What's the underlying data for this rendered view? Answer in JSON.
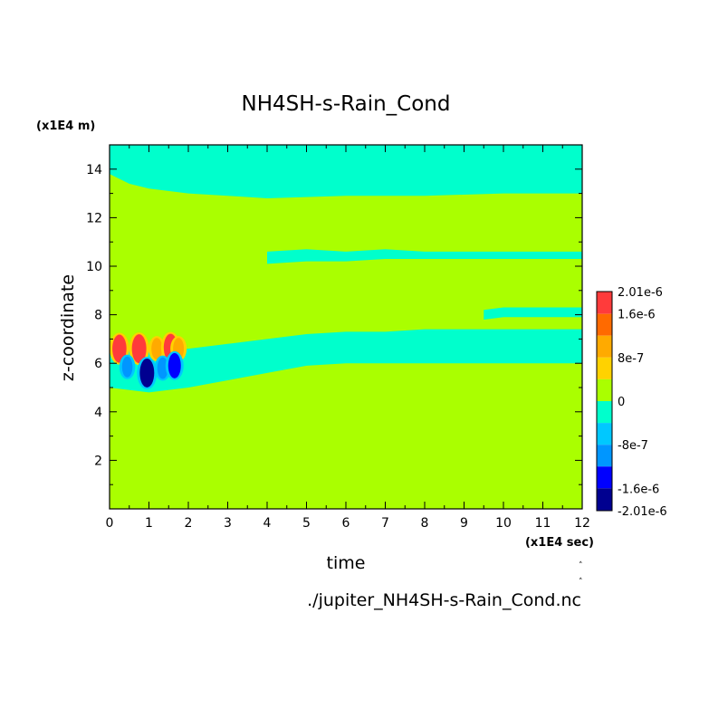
{
  "chart_data": {
    "type": "heatmap",
    "subtype": "filled-contour",
    "title": "NH4SH-s-Rain_Cond",
    "xlabel": "time",
    "ylabel": "z-coordinate",
    "x_unit": "(x1E4 sec)",
    "y_unit": "(x1E4 m)",
    "xlim": [
      0,
      12
    ],
    "ylim": [
      0,
      15
    ],
    "x_ticks": [
      "0",
      "1",
      "2",
      "3",
      "4",
      "5",
      "6",
      "7",
      "8",
      "9",
      "10",
      "11",
      "12"
    ],
    "y_ticks": [
      "2",
      "4",
      "6",
      "8",
      "10",
      "12",
      "14"
    ],
    "x_tick_values": [
      0,
      1,
      2,
      3,
      4,
      5,
      6,
      7,
      8,
      9,
      10,
      11,
      12
    ],
    "y_tick_values": [
      2,
      4,
      6,
      8,
      10,
      12,
      14
    ],
    "grid": false,
    "background_level": "0",
    "colorbar": {
      "labels": [
        "2.01e-6",
        "1.6e-6",
        "8e-7",
        "0",
        "-8e-7",
        "-1.6e-6",
        "-2.01e-6"
      ],
      "label_values": [
        2.01e-06,
        1.6e-06,
        8e-07,
        0,
        -8e-07,
        -1.6e-06,
        -2.01e-06
      ],
      "levels": [
        {
          "from": 1.6e-06,
          "to": 2.01e-06,
          "color": "#ff3b3b"
        },
        {
          "from": 1.2e-06,
          "to": 1.6e-06,
          "color": "#ff6a00"
        },
        {
          "from": 8e-07,
          "to": 1.2e-06,
          "color": "#ffaa00"
        },
        {
          "from": 4e-07,
          "to": 8e-07,
          "color": "#ffd200"
        },
        {
          "from": 0,
          "to": 4e-07,
          "color": "#aaff00"
        },
        {
          "from": -4e-07,
          "to": 0,
          "color": "#00ffcc"
        },
        {
          "from": -8e-07,
          "to": -4e-07,
          "color": "#00c8ff"
        },
        {
          "from": -1.2e-06,
          "to": -8e-07,
          "color": "#0096ff"
        },
        {
          "from": -1.6e-06,
          "to": -1.2e-06,
          "color": "#0000ff"
        },
        {
          "from": -2.01e-06,
          "to": -1.6e-06,
          "color": "#000090"
        }
      ]
    },
    "features": [
      {
        "name": "upper negative band",
        "color": "#00ffcc",
        "x": [
          0,
          0.5,
          1,
          2,
          3,
          4,
          6,
          8,
          10,
          12
        ],
        "z_bottom": [
          13.8,
          13.4,
          13.2,
          13.0,
          12.9,
          12.8,
          12.9,
          12.9,
          13.0,
          13.0
        ],
        "z_top": [
          15,
          15,
          15,
          15,
          15,
          15,
          15,
          15,
          15,
          15
        ]
      },
      {
        "name": "mid negative band",
        "color": "#00ffcc",
        "x": [
          4,
          5,
          6,
          7,
          8,
          9,
          10,
          11,
          12
        ],
        "z_bottom": [
          10.1,
          10.2,
          10.2,
          10.3,
          10.3,
          10.3,
          10.3,
          10.3,
          10.3
        ],
        "z_top": [
          10.6,
          10.7,
          10.6,
          10.7,
          10.6,
          10.6,
          10.6,
          10.6,
          10.6
        ]
      },
      {
        "name": "upper small negative band",
        "color": "#00ffcc",
        "x": [
          9.5,
          10,
          11,
          12
        ],
        "z_bottom": [
          7.8,
          7.9,
          7.9,
          7.9
        ],
        "z_top": [
          8.2,
          8.3,
          8.3,
          8.3
        ]
      },
      {
        "name": "lower negative band",
        "color": "#00ffcc",
        "x": [
          0,
          1,
          2,
          3,
          4,
          5,
          6,
          7,
          8,
          9,
          10,
          11,
          12
        ],
        "z_bottom": [
          5.0,
          4.8,
          5.0,
          5.3,
          5.6,
          5.9,
          6.0,
          6.0,
          6.0,
          6.0,
          6.0,
          6.0,
          6.0
        ],
        "z_top": [
          6.5,
          6.5,
          6.6,
          6.8,
          7.0,
          7.2,
          7.3,
          7.3,
          7.4,
          7.4,
          7.4,
          7.4,
          7.4
        ]
      },
      {
        "name": "positive cores",
        "color": "#ff3b3b",
        "points": [
          {
            "x": 0.25,
            "z": 6.6,
            "value": 1.9e-06
          },
          {
            "x": 0.75,
            "z": 6.6,
            "value": 2e-06
          },
          {
            "x": 1.2,
            "z": 6.6,
            "value": 1e-06
          },
          {
            "x": 1.55,
            "z": 6.65,
            "value": 1.8e-06
          },
          {
            "x": 1.75,
            "z": 6.6,
            "value": 1e-06
          }
        ]
      },
      {
        "name": "negative cores",
        "color": "#0000ff",
        "points": [
          {
            "x": 0.45,
            "z": 5.85,
            "value": -9e-07
          },
          {
            "x": 0.95,
            "z": 5.6,
            "value": -2e-06
          },
          {
            "x": 1.35,
            "z": 5.8,
            "value": -1e-06
          },
          {
            "x": 1.65,
            "z": 5.9,
            "value": -1.5e-06
          }
        ]
      }
    ],
    "footer": "./jupiter_NH4SH-s-Rain_Cond.nc"
  }
}
